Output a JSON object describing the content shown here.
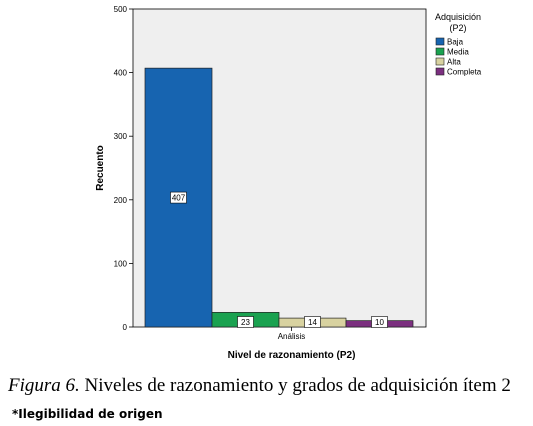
{
  "chart_data": {
    "type": "bar",
    "categories": [
      "Análisis"
    ],
    "series": [
      {
        "name": "Baja",
        "values": [
          407
        ],
        "color": "#1764b0"
      },
      {
        "name": "Media",
        "values": [
          23
        ],
        "color": "#1aa250"
      },
      {
        "name": "Alta",
        "values": [
          14
        ],
        "color": "#d8d2a0"
      },
      {
        "name": "Completa",
        "values": [
          10
        ],
        "color": "#7b2f7f"
      }
    ],
    "xlabel": "Nivel de razonamiento (P2)",
    "ylabel": "Recuento",
    "ylim": [
      0,
      500
    ],
    "yticks": [
      0,
      100,
      200,
      300,
      400,
      500
    ],
    "grid": false,
    "legend": {
      "title_line1": "Adquisición",
      "title_line2": "(P2)",
      "position": "right"
    },
    "plot_background": "#efefef"
  },
  "caption": {
    "figure_label": "Figura 6.",
    "text": " Niveles de razonamiento y grados de adquisición ítem 2"
  },
  "note": "*Ilegibilidad de origen"
}
